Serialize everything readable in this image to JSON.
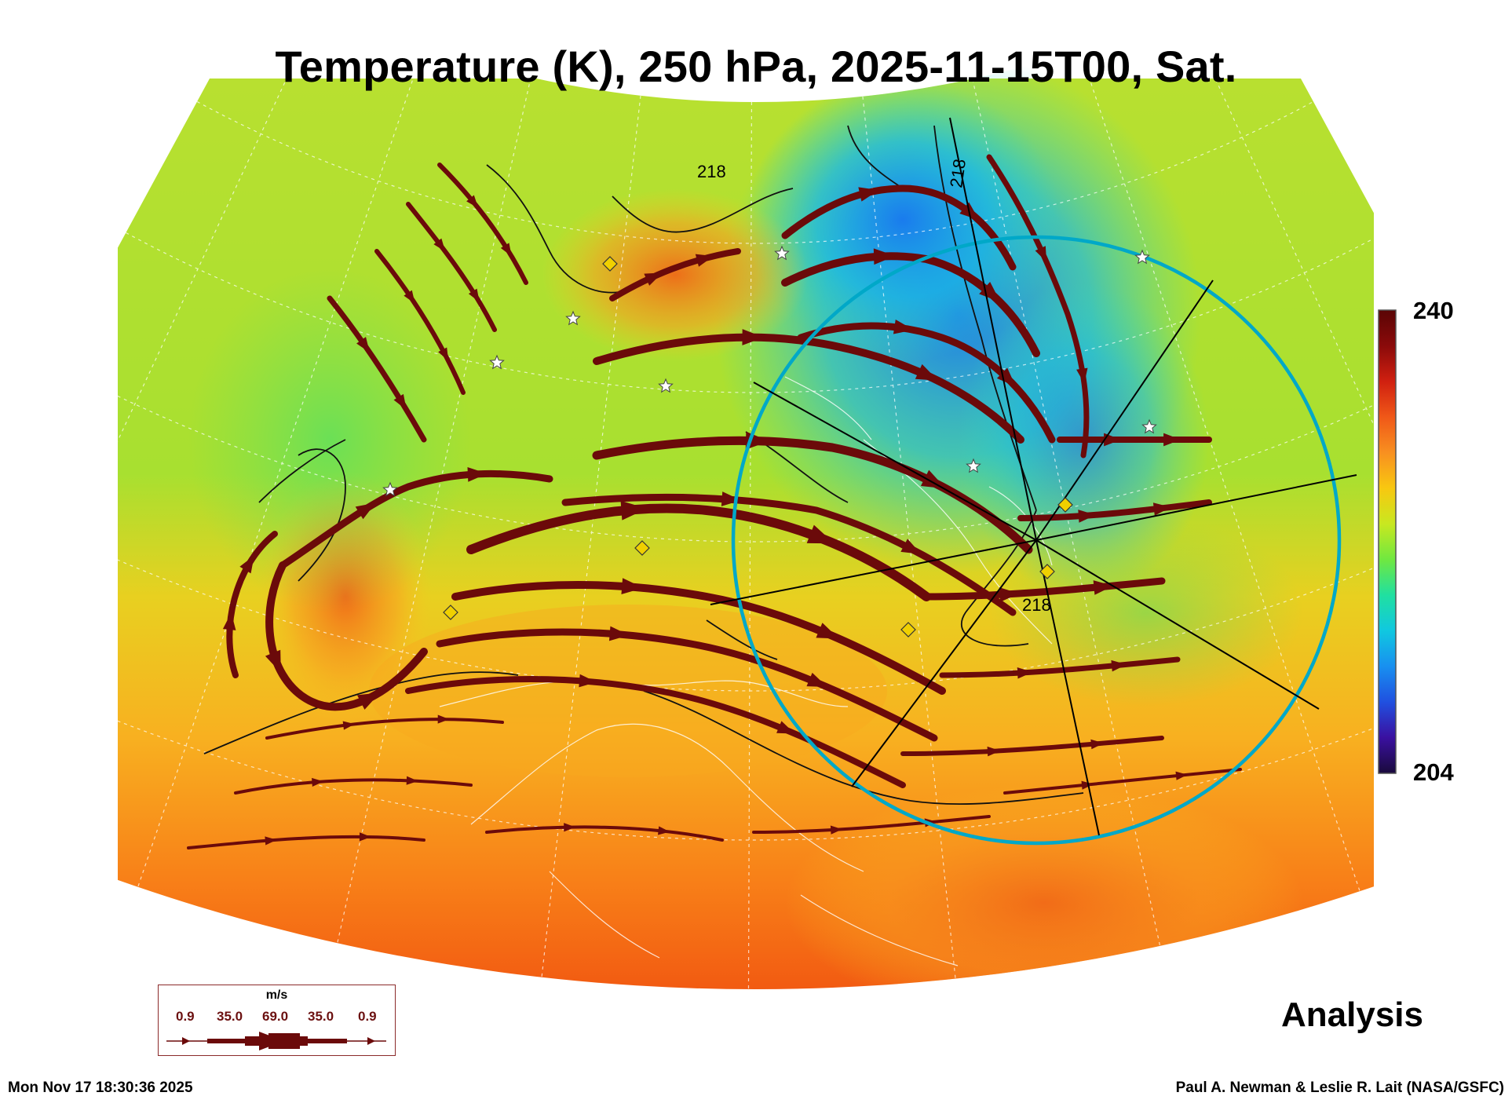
{
  "title": "Temperature (K), 250 hPa, 2025-11-15T00, Sat.",
  "colorbar": {
    "max_label": "240",
    "min_label": "204",
    "min": 204,
    "max": 240,
    "colors": [
      "#1a0a3c",
      "#3a10a0",
      "#2050e0",
      "#1890f0",
      "#10c8e0",
      "#20e0a0",
      "#70e840",
      "#c8e820",
      "#f8c810",
      "#f89020",
      "#f05818",
      "#d02010",
      "#8a0a0a",
      "#5a0505"
    ]
  },
  "contour_labels": [
    "218",
    "218",
    "218"
  ],
  "legend": {
    "unit": "m/s",
    "speeds": [
      "0.9",
      "35.0",
      "69.0",
      "35.0",
      "0.9"
    ]
  },
  "panel_label": "Analysis",
  "footer": {
    "left": "Mon Nov 17 18:30:36 2025",
    "right": "Paul A. Newman & Leslie R. Lait (NASA/GSFC)"
  },
  "colors": {
    "streamline": "#6b0a0a",
    "circle": "#00a8c8",
    "accent": "#f0d000"
  }
}
